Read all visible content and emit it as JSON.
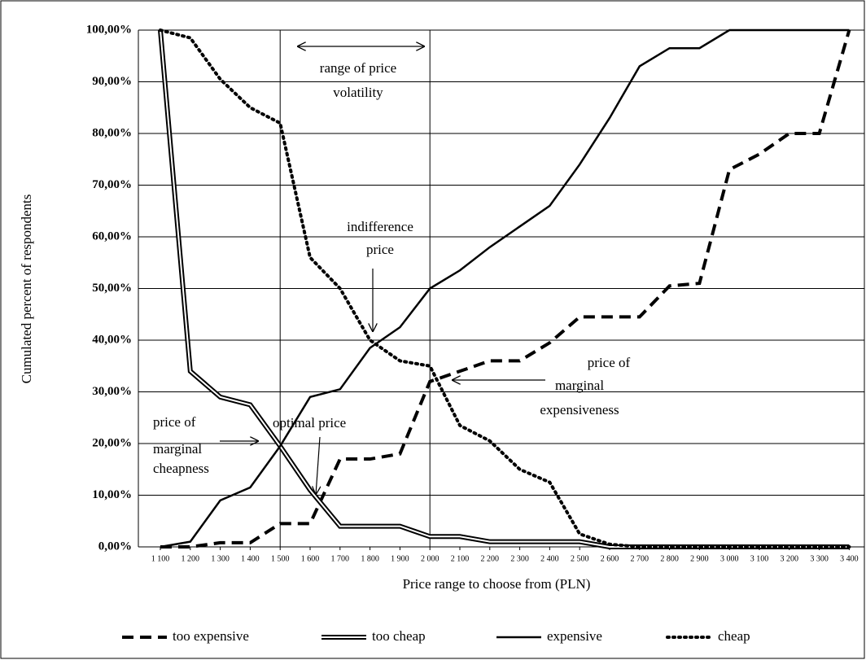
{
  "chart_data": {
    "type": "line",
    "x_label": "Price range to choose from (PLN)",
    "y_label": "Cumulated percent of respondents",
    "categories": [
      "1 100",
      "1 200",
      "1 300",
      "1 400",
      "1 500",
      "1 600",
      "1 700",
      "1 800",
      "1 900",
      "2 000",
      "2 100",
      "2 200",
      "2 300",
      "2 400",
      "2 500",
      "2 600",
      "2 700",
      "2 800",
      "2 900",
      "3 000",
      "3 100",
      "3 200",
      "3 300",
      "3 400"
    ],
    "series": [
      {
        "name": "too expensive",
        "color": "#000000",
        "style": "dashed",
        "values": [
          0,
          0,
          0.8,
          0.8,
          4.5,
          4.5,
          17,
          17,
          18,
          32,
          34,
          36,
          36,
          39.5,
          44.5,
          44.5,
          44.5,
          50.5,
          51,
          73,
          76,
          80,
          80,
          100
        ]
      },
      {
        "name": "too cheap",
        "color": "#000000",
        "style": "double",
        "values": [
          100,
          34,
          29,
          27.5,
          19.5,
          11,
          4,
          4,
          4,
          2,
          2,
          1,
          1,
          1,
          1,
          0,
          0,
          0,
          0,
          0,
          0,
          0,
          0,
          0
        ]
      },
      {
        "name": "expensive",
        "color": "#000000",
        "style": "solid",
        "values": [
          0,
          1,
          9,
          11.5,
          19.5,
          29,
          30.5,
          38.5,
          42.5,
          50,
          53.5,
          58,
          62,
          66,
          74,
          83,
          93,
          96.5,
          96.5,
          100,
          100,
          100,
          100,
          100
        ]
      },
      {
        "name": "cheap",
        "color": "#000000",
        "style": "dotted",
        "values": [
          100,
          98.5,
          90.5,
          85,
          82,
          56,
          50,
          40,
          36,
          35,
          23.5,
          20.5,
          15,
          12.5,
          2.5,
          0.5,
          0,
          0,
          0,
          0,
          0,
          0,
          0,
          0
        ]
      }
    ],
    "ylim": [
      0,
      100
    ],
    "yticks": [
      {
        "value": 0,
        "label": "0,00%"
      },
      {
        "value": 10,
        "label": "10,00%"
      },
      {
        "value": 20,
        "label": "20,00%"
      },
      {
        "value": 30,
        "label": "30,00%"
      },
      {
        "value": 40,
        "label": "40,00%"
      },
      {
        "value": 50,
        "label": "50,00%"
      },
      {
        "value": 60,
        "label": "60,00%"
      },
      {
        "value": 70,
        "label": "70,00%"
      },
      {
        "value": 80,
        "label": "80,00%"
      },
      {
        "value": 90,
        "label": "90,00%"
      },
      {
        "value": 100,
        "label": "100,00%"
      }
    ],
    "grid": true,
    "legend": "bottom",
    "annotations": [
      {
        "lines": [
          "range of price",
          "volatility"
        ]
      },
      {
        "lines": [
          "indifference",
          "price"
        ]
      },
      {
        "lines": [
          "price of",
          "marginal",
          "expensiveness"
        ]
      },
      {
        "lines": [
          "price of",
          "marginal",
          "cheapness"
        ]
      },
      {
        "lines": [
          "optimal price"
        ]
      }
    ]
  }
}
